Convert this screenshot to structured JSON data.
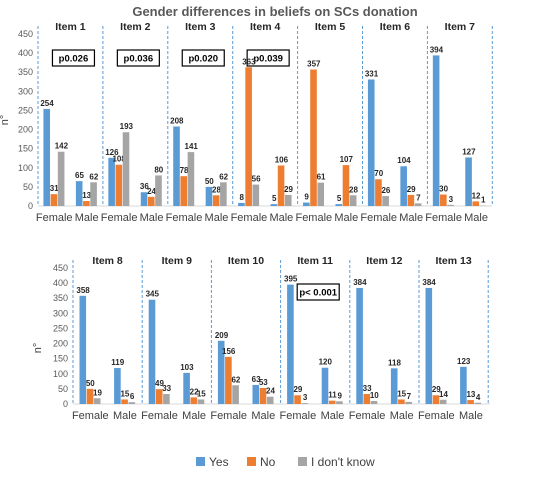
{
  "chart_data": {
    "type": "bar",
    "title": "Gender differences in beliefs on SCs donation",
    "ylabel": "n°",
    "ylim": [
      0,
      450
    ],
    "yticks": [
      0,
      50,
      100,
      150,
      200,
      250,
      300,
      350,
      400,
      450
    ],
    "groups": [
      "Female",
      "Male"
    ],
    "series": [
      {
        "name": "Yes",
        "color": "#5B9BD5"
      },
      {
        "name": "No",
        "color": "#ED7D31"
      },
      {
        "name": "I don't know",
        "color": "#A5A5A5"
      }
    ],
    "panels": [
      [
        {
          "item": "Item 1",
          "p": "p0.026",
          "values": [
            [
              254,
              31,
              142
            ],
            [
              65,
              13,
              62
            ]
          ]
        },
        {
          "item": "Item 2",
          "p": "p0.036",
          "values": [
            [
              126,
              108,
              193
            ],
            [
              36,
              24,
              80
            ]
          ]
        },
        {
          "item": "Item 3",
          "p": "p0.020",
          "values": [
            [
              208,
              78,
              141
            ],
            [
              50,
              28,
              62
            ]
          ]
        },
        {
          "item": "Item 4",
          "p": "p0.039",
          "values": [
            [
              8,
              363,
              56
            ],
            [
              5,
              106,
              29
            ]
          ]
        },
        {
          "item": "Item 5",
          "p": "",
          "values": [
            [
              9,
              357,
              61
            ],
            [
              5,
              107,
              28
            ]
          ]
        },
        {
          "item": "Item 6",
          "p": "",
          "values": [
            [
              331,
              70,
              26
            ],
            [
              104,
              29,
              7
            ]
          ]
        },
        {
          "item": "Item 7",
          "p": "",
          "values": [
            [
              394,
              30,
              3
            ],
            [
              127,
              12,
              1
            ]
          ]
        }
      ],
      [
        {
          "item": "Item 8",
          "p": "",
          "values": [
            [
              358,
              50,
              19
            ],
            [
              119,
              15,
              6
            ]
          ]
        },
        {
          "item": "Item 9",
          "p": "",
          "values": [
            [
              345,
              49,
              33
            ],
            [
              103,
              22,
              15
            ]
          ]
        },
        {
          "item": "Item 10",
          "p": "",
          "values": [
            [
              209,
              156,
              62
            ],
            [
              63,
              53,
              24
            ]
          ]
        },
        {
          "item": "Item 11",
          "p": "p< 0.001",
          "values": [
            [
              395,
              29,
              3
            ],
            [
              120,
              11,
              9
            ]
          ]
        },
        {
          "item": "Item 12",
          "p": "",
          "values": [
            [
              384,
              33,
              10
            ],
            [
              118,
              15,
              7
            ]
          ]
        },
        {
          "item": "Item 13",
          "p": "",
          "values": [
            [
              384,
              29,
              14
            ],
            [
              123,
              13,
              4
            ]
          ]
        }
      ]
    ]
  }
}
